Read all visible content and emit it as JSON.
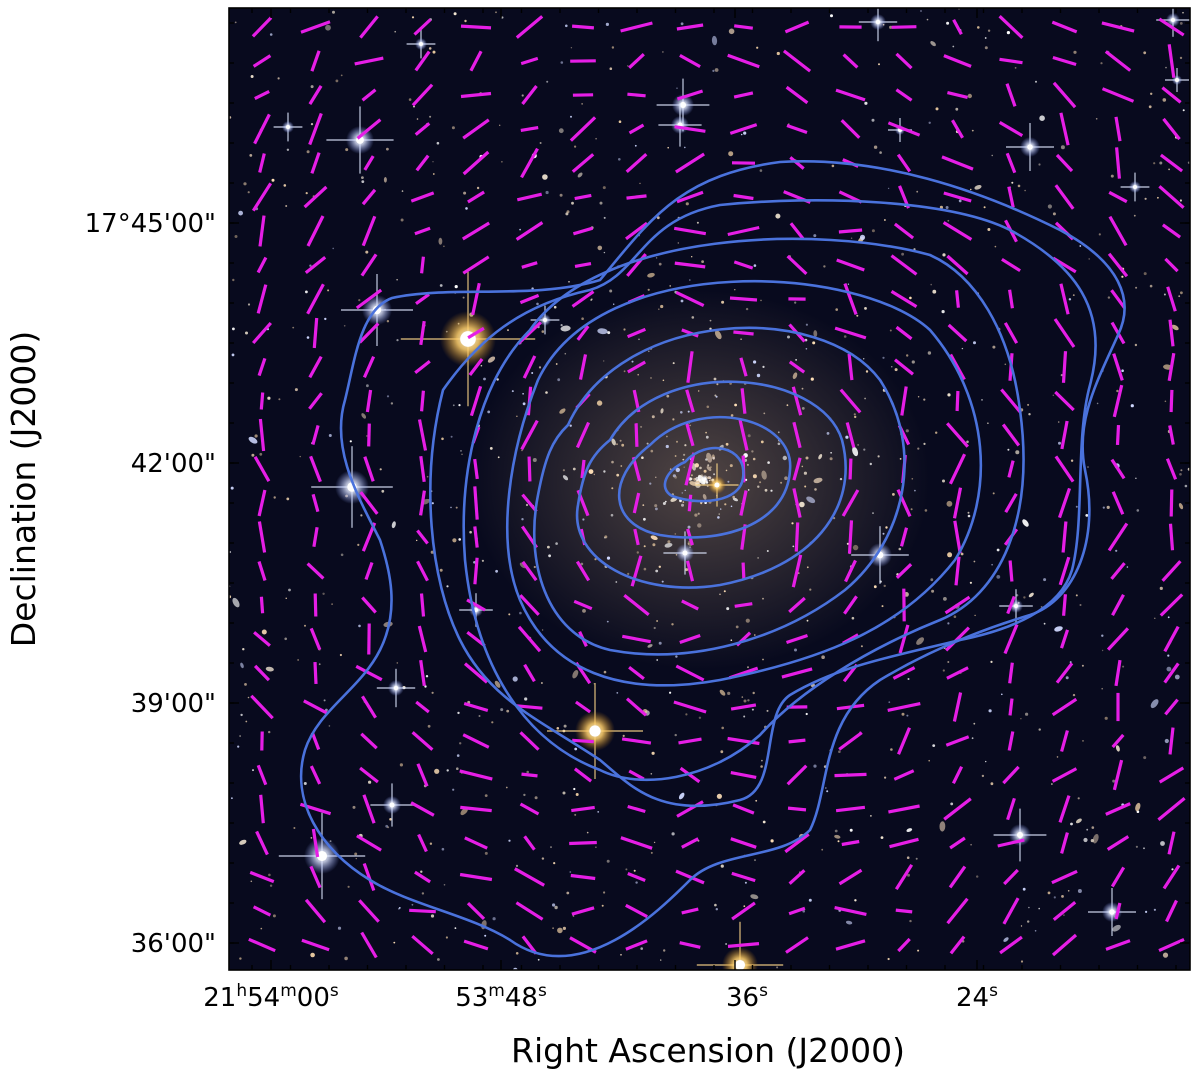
{
  "figure": {
    "xlabel": "Right Ascension (J2000)",
    "ylabel": "Declination (J2000)",
    "x_ticks": [
      {
        "parts": [
          [
            "21",
            ""
          ],
          [
            "h",
            "sup"
          ],
          [
            "54",
            ""
          ],
          [
            "m",
            "sup"
          ],
          [
            "00",
            ""
          ],
          [
            "s",
            "sup"
          ]
        ]
      },
      {
        "parts": [
          [
            "53",
            ""
          ],
          [
            "m",
            "sup"
          ],
          [
            "48",
            ""
          ],
          [
            "s",
            "sup"
          ]
        ]
      },
      {
        "parts": [
          [
            "36",
            ""
          ],
          [
            "s",
            "sup"
          ]
        ]
      },
      {
        "parts": [
          [
            "24",
            ""
          ],
          [
            "s",
            "sup"
          ]
        ]
      }
    ],
    "y_ticks": [
      "17°45'00\"",
      "42'00\"",
      "39'00\"",
      "36'00\""
    ]
  },
  "colors": {
    "background": "#080a1e",
    "contour": "#4a72dc",
    "polarization_vectors": "#e61ee6",
    "frame": "#000000"
  },
  "overlay": {
    "contour_count": 8,
    "vector_field": "magenta line segments on a regular grid"
  }
}
